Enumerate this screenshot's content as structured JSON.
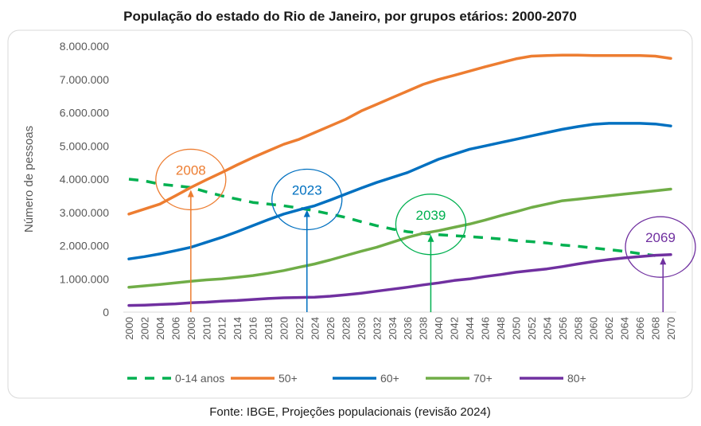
{
  "chart_data": {
    "type": "line",
    "title": "População do estado do Rio de Janeiro, por grupos etários: 2000-2070",
    "xlabel": "",
    "ylabel": "Número de pessoas",
    "ylim": [
      0,
      8000000
    ],
    "yticks": [
      "0",
      "1.000.000",
      "2.000.000",
      "3.000.000",
      "4.000.000",
      "5.000.000",
      "6.000.000",
      "7.000.000",
      "8.000.000"
    ],
    "grid": false,
    "legend_position": "bottom",
    "x": [
      2000,
      2002,
      2004,
      2006,
      2008,
      2010,
      2012,
      2014,
      2016,
      2018,
      2020,
      2022,
      2024,
      2026,
      2028,
      2030,
      2032,
      2034,
      2036,
      2038,
      2040,
      2042,
      2044,
      2046,
      2048,
      2050,
      2052,
      2054,
      2056,
      2058,
      2060,
      2062,
      2064,
      2066,
      2068,
      2070
    ],
    "series": [
      {
        "name": "0-14 anos",
        "color": "#00B050",
        "dashed": true,
        "values": [
          4000000,
          3950000,
          3850000,
          3800000,
          3750000,
          3620000,
          3500000,
          3400000,
          3300000,
          3250000,
          3200000,
          3130000,
          3050000,
          2950000,
          2850000,
          2720000,
          2600000,
          2500000,
          2420000,
          2370000,
          2330000,
          2300000,
          2270000,
          2240000,
          2200000,
          2150000,
          2120000,
          2080000,
          2020000,
          1980000,
          1930000,
          1880000,
          1830000,
          1760000,
          1700000,
          null
        ]
      },
      {
        "name": "50+",
        "color": "#ED7D31",
        "dashed": false,
        "values": [
          2950000,
          3100000,
          3250000,
          3500000,
          3750000,
          3980000,
          4200000,
          4430000,
          4650000,
          4850000,
          5050000,
          5200000,
          5400000,
          5600000,
          5800000,
          6050000,
          6250000,
          6450000,
          6650000,
          6850000,
          7000000,
          7120000,
          7250000,
          7380000,
          7500000,
          7620000,
          7700000,
          7720000,
          7730000,
          7730000,
          7720000,
          7720000,
          7720000,
          7720000,
          7700000,
          7630000
        ]
      },
      {
        "name": "60+",
        "color": "#0070C0",
        "dashed": false,
        "values": [
          1600000,
          1670000,
          1750000,
          1850000,
          1950000,
          2100000,
          2250000,
          2420000,
          2600000,
          2780000,
          2950000,
          3080000,
          3200000,
          3370000,
          3550000,
          3730000,
          3900000,
          4050000,
          4200000,
          4400000,
          4600000,
          4750000,
          4900000,
          5000000,
          5100000,
          5200000,
          5300000,
          5400000,
          5500000,
          5580000,
          5650000,
          5680000,
          5680000,
          5680000,
          5660000,
          5600000
        ]
      },
      {
        "name": "70+",
        "color": "#70AD47",
        "dashed": false,
        "values": [
          750000,
          790000,
          830000,
          880000,
          930000,
          970000,
          1000000,
          1050000,
          1100000,
          1170000,
          1250000,
          1350000,
          1450000,
          1570000,
          1700000,
          1830000,
          1950000,
          2100000,
          2250000,
          2370000,
          2450000,
          2550000,
          2650000,
          2770000,
          2900000,
          3020000,
          3150000,
          3250000,
          3350000,
          3400000,
          3450000,
          3500000,
          3550000,
          3600000,
          3650000,
          3700000
        ]
      },
      {
        "name": "80+",
        "color": "#7030A0",
        "dashed": false,
        "values": [
          200000,
          210000,
          230000,
          250000,
          280000,
          300000,
          330000,
          350000,
          380000,
          410000,
          430000,
          440000,
          450000,
          480000,
          520000,
          570000,
          630000,
          690000,
          750000,
          820000,
          880000,
          950000,
          1000000,
          1070000,
          1130000,
          1200000,
          1250000,
          1300000,
          1370000,
          1450000,
          1520000,
          1580000,
          1630000,
          1670000,
          1710000,
          1730000
        ]
      }
    ],
    "annotations": [
      {
        "label": "2008",
        "year": 2008,
        "value": 3750000,
        "color": "#ED7D31"
      },
      {
        "label": "2023",
        "year": 2023,
        "value": 3150000,
        "color": "#0070C0"
      },
      {
        "label": "2039",
        "year": 2039,
        "value": 2400000,
        "color": "#00B050"
      },
      {
        "label": "2069",
        "year": 2069,
        "value": 1720000,
        "color": "#7030A0"
      }
    ],
    "source": "Fonte: IBGE, Projeções populacionais (revisão 2024)"
  }
}
